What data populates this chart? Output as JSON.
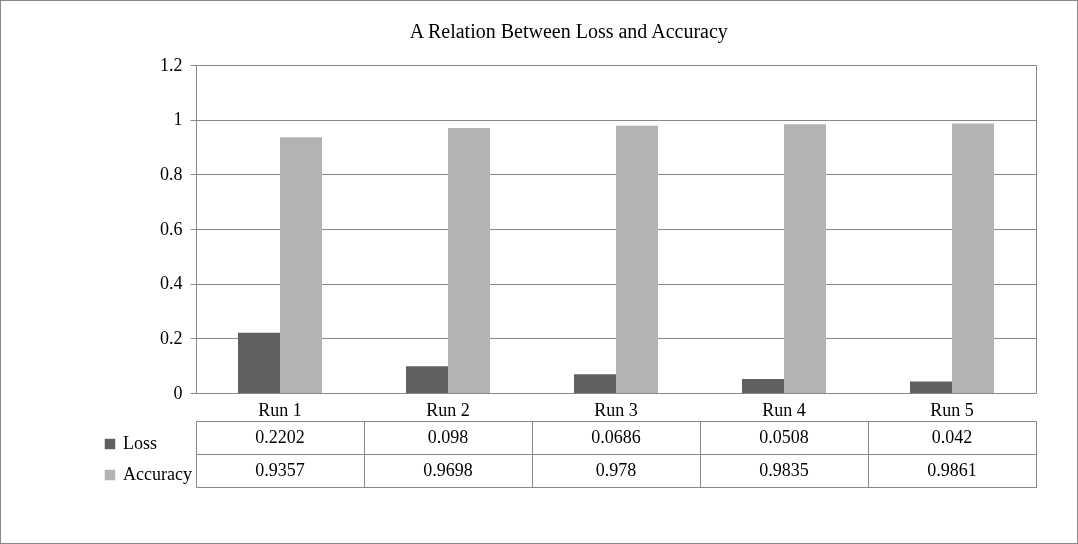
{
  "chart_data": {
    "type": "bar",
    "title": "A Relation Between Loss and Accuracy",
    "categories": [
      "Run 1",
      "Run 2",
      "Run 3",
      "Run 4",
      "Run 5"
    ],
    "series": [
      {
        "name": "Loss",
        "color": "#606060",
        "values": [
          0.2202,
          0.098,
          0.0686,
          0.0508,
          0.042
        ]
      },
      {
        "name": "Accuracy",
        "color": "#b3b3b3",
        "values": [
          0.9357,
          0.9698,
          0.978,
          0.9835,
          0.9861
        ]
      }
    ],
    "ylim": [
      0,
      1.2
    ],
    "yticks": [
      0,
      0.2,
      0.4,
      0.6,
      0.8,
      1,
      1.2
    ],
    "grid": "y",
    "legend": "bottom left",
    "data_labels": true
  }
}
